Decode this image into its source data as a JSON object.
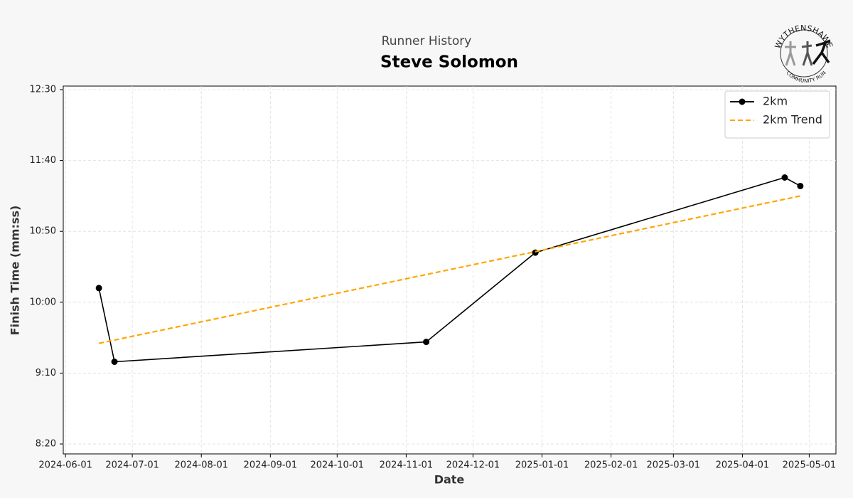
{
  "page_subtitle": "Runner History",
  "logo": {
    "top": "WYTHENSHAWE",
    "bottom": "COMMUNITY RUN"
  },
  "chart_data": {
    "type": "line",
    "title": "Steve Solomon",
    "x_label": "Date",
    "y_label": "Finish Time (mm:ss)",
    "series": [
      {
        "name": "2km",
        "color": "#000000",
        "markers": true,
        "dashed": false,
        "x": [
          "2024-06-16",
          "2024-06-23",
          "2024-11-10",
          "2024-12-29",
          "2025-04-20",
          "2025-04-27"
        ],
        "values": [
          610,
          558,
          572,
          635,
          688,
          682
        ]
      },
      {
        "name": "2km Trend",
        "color": "#ffa500",
        "markers": false,
        "dashed": true,
        "x": [
          "2024-06-16",
          "2025-04-27"
        ],
        "values": [
          571,
          675
        ]
      }
    ],
    "xlim": [
      "2024-05-31",
      "2025-05-13"
    ],
    "xticks": [
      "2024-06-01",
      "2024-07-01",
      "2024-08-01",
      "2024-09-01",
      "2024-10-01",
      "2024-11-01",
      "2024-12-01",
      "2025-01-01",
      "2025-02-01",
      "2025-03-01",
      "2025-04-01",
      "2025-05-01"
    ],
    "ylim": [
      493,
      752.5
    ],
    "yticks": [
      {
        "value": 500,
        "label": "8:20"
      },
      {
        "value": 550,
        "label": "9:10"
      },
      {
        "value": 600,
        "label": "10:00"
      },
      {
        "value": 650,
        "label": "10:50"
      },
      {
        "value": 700,
        "label": "11:40"
      },
      {
        "value": 750,
        "label": "12:30"
      }
    ],
    "grid": true,
    "legend": "upper right"
  }
}
